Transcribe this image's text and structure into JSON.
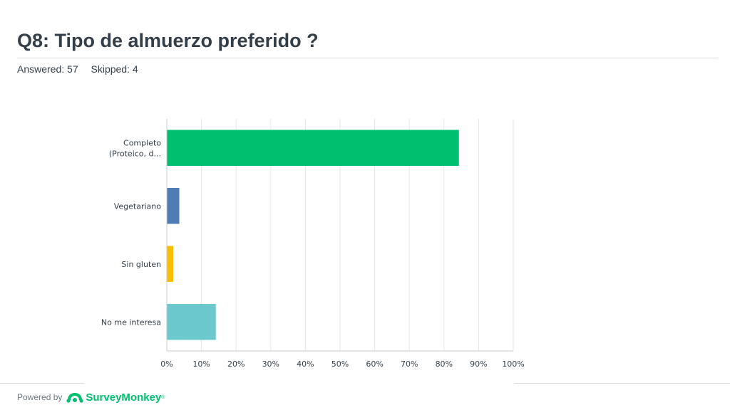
{
  "header": {
    "title": "Q8: Tipo de almuerzo preferido ?",
    "answered": "Answered: 57",
    "skipped": "Skipped: 4"
  },
  "chart_data": {
    "type": "bar",
    "orientation": "horizontal",
    "categories": [
      [
        "Completo",
        "(Proteico, d..."
      ],
      [
        "Vegetariano"
      ],
      [
        "Sin gluten"
      ],
      [
        "No me interesa"
      ]
    ],
    "values": [
      84.21,
      3.51,
      1.75,
      14.04
    ],
    "colors": [
      "#00bf6f",
      "#507cb6",
      "#f9be00",
      "#6bc8cd"
    ],
    "xlim": [
      0,
      100
    ],
    "ticks": [
      "0%",
      "10%",
      "20%",
      "30%",
      "40%",
      "50%",
      "60%",
      "70%",
      "80%",
      "90%",
      "100%"
    ],
    "grid": true,
    "title": "",
    "xlabel": "",
    "ylabel": ""
  },
  "footer": {
    "powered_by": "Powered by",
    "brand": "SurveyMonkey",
    "brand_icon": "surveymonkey-logo-icon",
    "trademark": "®"
  }
}
